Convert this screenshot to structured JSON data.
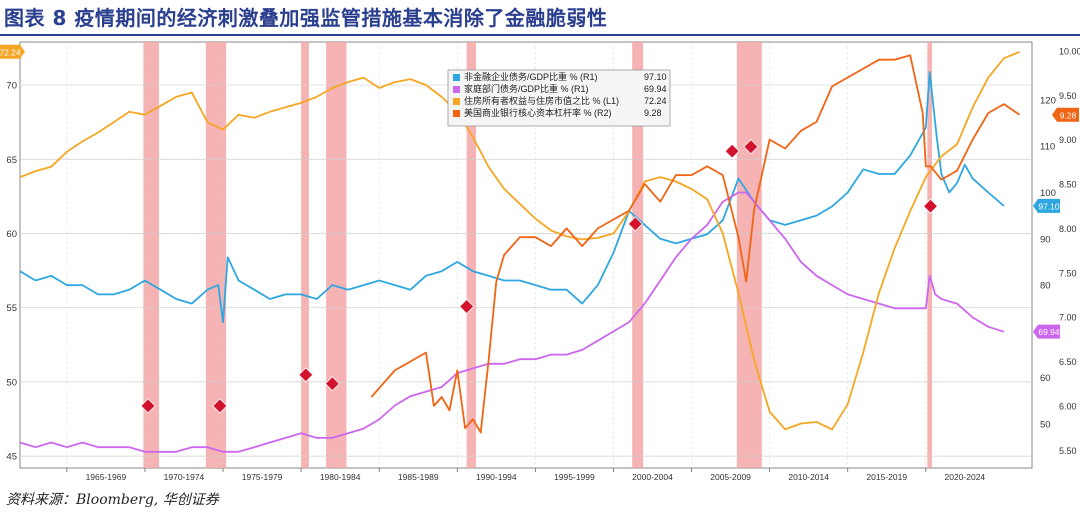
{
  "page": {
    "title": "图表 8  疫情期间的经济刺激叠加强监管措施基本消除了金融脆弱性",
    "source": "资料来源：Bloomberg, 华创证券"
  },
  "colors": {
    "nonfin": "#2ea7e0",
    "household": "#cc66ee",
    "equity": "#f5a623",
    "leverage": "#f06414",
    "recession": "#f4a6a6",
    "marker": "#d3122e",
    "grid": "#cfcfcf"
  },
  "chart_data": {
    "type": "line",
    "title": "",
    "xlabel": "",
    "ylabel": "",
    "grid": true,
    "legend_position": "top-center",
    "x_tick_labels": [
      "1965-1969",
      "1970-1974",
      "1975-1979",
      "1980-1984",
      "1985-1989",
      "1990-1994",
      "1995-1999",
      "2000-2004",
      "2005-2009",
      "2010-2014",
      "2015-2019",
      "2020-2024"
    ],
    "x_tick_starts": [
      1965,
      1970,
      1975,
      1980,
      1985,
      1990,
      1995,
      2000,
      2005,
      2010,
      2015,
      2020
    ],
    "xlim": [
      1962.0,
      2026.8
    ],
    "left_axis": {
      "ylim": [
        44.2,
        72.9
      ],
      "ticks": [
        45,
        50,
        55,
        60,
        65,
        70
      ],
      "current_value_label": "72.24"
    },
    "right_axis_r1": {
      "ylim": [
        40.5,
        132.5
      ],
      "ticks": [
        50,
        60,
        70,
        80,
        90,
        100,
        110,
        120
      ]
    },
    "right_axis_r2": {
      "ylim": [
        5.3,
        10.1
      ],
      "ticks": [
        "5.50",
        "6.00",
        "6.50",
        "7.00",
        "7.50",
        "8.00",
        "8.50",
        "9.00",
        "9.50",
        "10.00"
      ],
      "tick_values": [
        5.5,
        6.0,
        6.5,
        7.0,
        7.5,
        8.0,
        8.5,
        9.0,
        9.5,
        10.0
      ]
    },
    "recessions": [
      [
        1969.9,
        1970.9
      ],
      [
        1973.9,
        1975.2
      ],
      [
        1980.0,
        1980.5
      ],
      [
        1981.6,
        1982.9
      ],
      [
        1990.6,
        1991.2
      ],
      [
        2001.2,
        2001.9
      ],
      [
        2007.9,
        2009.5
      ],
      [
        2020.1,
        2020.4
      ]
    ],
    "series": [
      {
        "name": "非金融企业债务/GDP比重 % (R1)",
        "axis": "R1",
        "color_key": "nonfin",
        "last_value": "97.10",
        "points": [
          [
            1962,
            83
          ],
          [
            1963,
            81
          ],
          [
            1964,
            82
          ],
          [
            1965,
            80
          ],
          [
            1966,
            80
          ],
          [
            1967,
            78
          ],
          [
            1968,
            78
          ],
          [
            1969,
            79
          ],
          [
            1970,
            81
          ],
          [
            1971,
            79
          ],
          [
            1972,
            77
          ],
          [
            1973,
            76
          ],
          [
            1974,
            79
          ],
          [
            1974.7,
            80
          ],
          [
            1975.0,
            72
          ],
          [
            1975.3,
            86
          ],
          [
            1976,
            81
          ],
          [
            1977,
            79
          ],
          [
            1978,
            77
          ],
          [
            1979,
            78
          ],
          [
            1980,
            78
          ],
          [
            1981,
            77
          ],
          [
            1982,
            80
          ],
          [
            1983,
            79
          ],
          [
            1984,
            80
          ],
          [
            1985,
            81
          ],
          [
            1986,
            80
          ],
          [
            1987,
            79
          ],
          [
            1988,
            82
          ],
          [
            1989,
            83
          ],
          [
            1990,
            85
          ],
          [
            1991,
            83
          ],
          [
            1992,
            82
          ],
          [
            1993,
            81
          ],
          [
            1994,
            81
          ],
          [
            1995,
            80
          ],
          [
            1996,
            79
          ],
          [
            1997,
            79
          ],
          [
            1998,
            76
          ],
          [
            1999,
            80
          ],
          [
            2000,
            87
          ],
          [
            2001,
            96
          ],
          [
            2002,
            93
          ],
          [
            2003,
            90
          ],
          [
            2004,
            89
          ],
          [
            2005,
            90
          ],
          [
            2006,
            91
          ],
          [
            2007,
            94
          ],
          [
            2008,
            103
          ],
          [
            2009,
            98
          ],
          [
            2010,
            94
          ],
          [
            2011,
            93
          ],
          [
            2012,
            94
          ],
          [
            2013,
            95
          ],
          [
            2014,
            97
          ],
          [
            2015,
            100
          ],
          [
            2016,
            105
          ],
          [
            2017,
            104
          ],
          [
            2018,
            104
          ],
          [
            2019,
            108
          ],
          [
            2020.0,
            114
          ],
          [
            2020.25,
            126
          ],
          [
            2020.7,
            112
          ],
          [
            2021,
            104
          ],
          [
            2021.5,
            100
          ],
          [
            2022,
            102
          ],
          [
            2022.5,
            106
          ],
          [
            2023,
            103
          ],
          [
            2024,
            100
          ],
          [
            2025,
            97.1
          ]
        ]
      },
      {
        "name": "家庭部门债务/GDP比重 % (R1)",
        "axis": "R1",
        "color_key": "household",
        "last_value": "69.94",
        "points": [
          [
            1962,
            46
          ],
          [
            1963,
            45
          ],
          [
            1964,
            46
          ],
          [
            1965,
            45
          ],
          [
            1966,
            46
          ],
          [
            1967,
            45
          ],
          [
            1968,
            45
          ],
          [
            1969,
            45
          ],
          [
            1970,
            44
          ],
          [
            1971,
            44
          ],
          [
            1972,
            44
          ],
          [
            1973,
            45
          ],
          [
            1974,
            45
          ],
          [
            1975,
            44
          ],
          [
            1976,
            44
          ],
          [
            1977,
            45
          ],
          [
            1978,
            46
          ],
          [
            1979,
            47
          ],
          [
            1980,
            48
          ],
          [
            1981,
            47
          ],
          [
            1982,
            47
          ],
          [
            1983,
            48
          ],
          [
            1984,
            49
          ],
          [
            1985,
            51
          ],
          [
            1986,
            54
          ],
          [
            1987,
            56
          ],
          [
            1988,
            57
          ],
          [
            1989,
            58
          ],
          [
            1990,
            61
          ],
          [
            1991,
            62
          ],
          [
            1992,
            63
          ],
          [
            1993,
            63
          ],
          [
            1994,
            64
          ],
          [
            1995,
            64
          ],
          [
            1996,
            65
          ],
          [
            1997,
            65
          ],
          [
            1998,
            66
          ],
          [
            1999,
            68
          ],
          [
            2000,
            70
          ],
          [
            2001,
            72
          ],
          [
            2002,
            76
          ],
          [
            2003,
            81
          ],
          [
            2004,
            86
          ],
          [
            2005,
            90
          ],
          [
            2006,
            93
          ],
          [
            2007,
            98
          ],
          [
            2008,
            100
          ],
          [
            2008.5,
            100
          ],
          [
            2009,
            98
          ],
          [
            2010,
            94
          ],
          [
            2011,
            90
          ],
          [
            2012,
            85
          ],
          [
            2013,
            82
          ],
          [
            2014,
            80
          ],
          [
            2015,
            78
          ],
          [
            2016,
            77
          ],
          [
            2017,
            76
          ],
          [
            2018,
            75
          ],
          [
            2019,
            75
          ],
          [
            2020.0,
            75
          ],
          [
            2020.25,
            82
          ],
          [
            2020.6,
            78
          ],
          [
            2021,
            77
          ],
          [
            2022,
            76
          ],
          [
            2023,
            73
          ],
          [
            2024,
            71
          ],
          [
            2025,
            69.94
          ]
        ]
      },
      {
        "name": "住房所有者权益与住房市值之比 % (L1)",
        "axis": "L1",
        "color_key": "equity",
        "last_value": "72.24",
        "points": [
          [
            1962,
            63.8
          ],
          [
            1963,
            64.2
          ],
          [
            1964,
            64.5
          ],
          [
            1965,
            65.5
          ],
          [
            1966,
            66.2
          ],
          [
            1967,
            66.8
          ],
          [
            1968,
            67.5
          ],
          [
            1969,
            68.2
          ],
          [
            1970,
            68.0
          ],
          [
            1971,
            68.6
          ],
          [
            1972,
            69.2
          ],
          [
            1973,
            69.5
          ],
          [
            1974,
            67.5
          ],
          [
            1975,
            67.0
          ],
          [
            1976,
            68.0
          ],
          [
            1977,
            67.8
          ],
          [
            1978,
            68.2
          ],
          [
            1979,
            68.5
          ],
          [
            1980,
            68.8
          ],
          [
            1981,
            69.2
          ],
          [
            1982,
            69.8
          ],
          [
            1983,
            70.2
          ],
          [
            1984,
            70.5
          ],
          [
            1985,
            69.8
          ],
          [
            1986,
            70.2
          ],
          [
            1987,
            70.4
          ],
          [
            1988,
            70.0
          ],
          [
            1989,
            69.2
          ],
          [
            1990,
            68.2
          ],
          [
            1991,
            66.5
          ],
          [
            1992,
            64.5
          ],
          [
            1993,
            63.0
          ],
          [
            1994,
            62.0
          ],
          [
            1995,
            61.0
          ],
          [
            1996,
            60.2
          ],
          [
            1997,
            59.8
          ],
          [
            1998,
            59.6
          ],
          [
            1999,
            59.7
          ],
          [
            2000,
            60.0
          ],
          [
            2001,
            61.5
          ],
          [
            2002,
            63.5
          ],
          [
            2003,
            63.8
          ],
          [
            2004,
            63.5
          ],
          [
            2005,
            63.0
          ],
          [
            2006,
            62.3
          ],
          [
            2007,
            60.0
          ],
          [
            2008,
            56.0
          ],
          [
            2009,
            51.5
          ],
          [
            2010,
            48.0
          ],
          [
            2011,
            46.8
          ],
          [
            2012,
            47.2
          ],
          [
            2013,
            47.3
          ],
          [
            2014,
            46.8
          ],
          [
            2015,
            48.5
          ],
          [
            2016,
            52.0
          ],
          [
            2017,
            56.0
          ],
          [
            2018,
            59.0
          ],
          [
            2019,
            61.5
          ],
          [
            2020,
            63.8
          ],
          [
            2021,
            65.2
          ],
          [
            2022,
            66.0
          ],
          [
            2023,
            68.5
          ],
          [
            2024,
            70.5
          ],
          [
            2025,
            71.8
          ],
          [
            2026,
            72.24
          ]
        ]
      },
      {
        "name": "美国商业银行核心资本杠杆率 % (R2)",
        "axis": "R2",
        "color_key": "leverage",
        "last_value": "9.28",
        "points": [
          [
            1984.5,
            6.1
          ],
          [
            1985,
            6.2
          ],
          [
            1986,
            6.4
          ],
          [
            1987,
            6.5
          ],
          [
            1988,
            6.6
          ],
          [
            1988.5,
            6.0
          ],
          [
            1989,
            6.1
          ],
          [
            1989.5,
            5.95
          ],
          [
            1990,
            6.4
          ],
          [
            1990.5,
            5.75
          ],
          [
            1991,
            5.85
          ],
          [
            1991.5,
            5.7
          ],
          [
            1992,
            6.5
          ],
          [
            1992.5,
            7.4
          ],
          [
            1993,
            7.7
          ],
          [
            1994,
            7.9
          ],
          [
            1995,
            7.9
          ],
          [
            1996,
            7.8
          ],
          [
            1997,
            8.0
          ],
          [
            1998,
            7.8
          ],
          [
            1999,
            8.0
          ],
          [
            2000,
            8.1
          ],
          [
            2001,
            8.2
          ],
          [
            2002,
            8.5
          ],
          [
            2003,
            8.3
          ],
          [
            2004,
            8.6
          ],
          [
            2005,
            8.6
          ],
          [
            2006,
            8.7
          ],
          [
            2007,
            8.6
          ],
          [
            2008,
            7.9
          ],
          [
            2008.5,
            7.4
          ],
          [
            2009,
            8.2
          ],
          [
            2010,
            9.0
          ],
          [
            2011,
            8.9
          ],
          [
            2012,
            9.1
          ],
          [
            2013,
            9.2
          ],
          [
            2014,
            9.6
          ],
          [
            2015,
            9.7
          ],
          [
            2016,
            9.8
          ],
          [
            2017,
            9.9
          ],
          [
            2018,
            9.9
          ],
          [
            2019,
            9.95
          ],
          [
            2019.8,
            9.3
          ],
          [
            2020,
            8.7
          ],
          [
            2020.3,
            8.7
          ],
          [
            2021,
            8.55
          ],
          [
            2022,
            8.65
          ],
          [
            2023,
            9.0
          ],
          [
            2024,
            9.3
          ],
          [
            2025,
            9.4
          ],
          [
            2026,
            9.28
          ]
        ]
      }
    ],
    "markers": [
      {
        "x": 1970.2,
        "axis": "R2",
        "y": 6.0
      },
      {
        "x": 1974.8,
        "axis": "R2",
        "y": 6.0
      },
      {
        "x": 1980.3,
        "axis": "R2",
        "y": 6.35
      },
      {
        "x": 1982.0,
        "axis": "R2",
        "y": 6.25
      },
      {
        "x": 1990.6,
        "axis": "R2",
        "y": 7.12
      },
      {
        "x": 2001.4,
        "axis": "R2",
        "y": 8.05
      },
      {
        "x": 2007.6,
        "axis": "R2",
        "y": 8.87
      },
      {
        "x": 2008.8,
        "axis": "R2",
        "y": 8.92
      },
      {
        "x": 2020.3,
        "axis": "R2",
        "y": 8.25
      }
    ]
  }
}
